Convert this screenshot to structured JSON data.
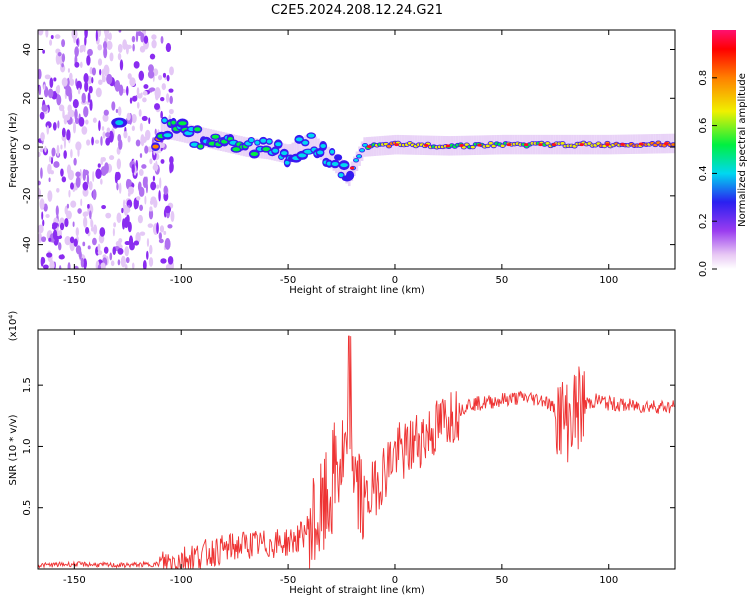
{
  "chart_data": [
    {
      "type": "heatmap",
      "title": "C2E5.2024.208.12.24.G21",
      "xlabel": "Height of straight line (km)",
      "ylabel": "Frequency (Hz)",
      "xlim": [
        -167,
        131
      ],
      "ylim": [
        -50,
        48
      ],
      "xticks": [
        -150,
        -100,
        -50,
        0,
        50,
        100
      ],
      "yticks": [
        -40,
        -20,
        0,
        20,
        40
      ],
      "colorbar": {
        "label": "Normalized spectral amplitude",
        "range": [
          0,
          1
        ],
        "ticks": [
          "0.0",
          "0.2",
          "0.4",
          "0.6",
          "0.8"
        ],
        "colors": [
          "#ffffff",
          "#e8c8f4",
          "#9a3cf0",
          "#2a20f0",
          "#00d8f0",
          "#00f040",
          "#f0f000",
          "#ff8000",
          "#ff0000",
          "#ff1070"
        ]
      },
      "trace": [
        {
          "x": -110,
          "f": 8,
          "amp": 0.45
        },
        {
          "x": -100,
          "f": 6,
          "amp": 0.5
        },
        {
          "x": -90,
          "f": 4,
          "amp": 0.45
        },
        {
          "x": -80,
          "f": 2,
          "amp": 0.5
        },
        {
          "x": -70,
          "f": 0,
          "amp": 0.5
        },
        {
          "x": -60,
          "f": -1,
          "amp": 0.45
        },
        {
          "x": -50,
          "f": -3,
          "amp": 0.45
        },
        {
          "x": -40,
          "f": 2,
          "amp": 0.45
        },
        {
          "x": -30,
          "f": -5,
          "amp": 0.45
        },
        {
          "x": -22,
          "f": -12,
          "amp": 0.4
        },
        {
          "x": -15,
          "f": 0,
          "amp": 0.5
        },
        {
          "x": 0,
          "f": 1,
          "amp": 0.7
        },
        {
          "x": 25,
          "f": 0.5,
          "amp": 0.6
        },
        {
          "x": 50,
          "f": 1,
          "amp": 0.6
        },
        {
          "x": 75,
          "f": 1,
          "amp": 0.65
        },
        {
          "x": 100,
          "f": 1,
          "amp": 0.7
        },
        {
          "x": 131,
          "f": 1.5,
          "amp": 0.8
        }
      ]
    },
    {
      "type": "line",
      "xlabel": "Height of straight line (km)",
      "ylabel": "SNR (10 * v/v)",
      "multiplier": "(x10⁴)",
      "xlim": [
        -167,
        131
      ],
      "ylim": [
        0,
        1.95
      ],
      "xticks": [
        -150,
        -100,
        -50,
        0,
        50,
        100
      ],
      "yticks": [
        0.5,
        1.0,
        1.5
      ],
      "ytick_labels": [
        "0.5",
        "1.0",
        "1.5"
      ],
      "color": "#ee3333",
      "x": [
        -167,
        -150,
        -130,
        -110,
        -100,
        -90,
        -80,
        -70,
        -60,
        -50,
        -45,
        -40,
        -35,
        -30,
        -28,
        -25,
        -22,
        -20,
        -18,
        -15,
        -10,
        -5,
        0,
        5,
        10,
        15,
        20,
        25,
        30,
        35,
        40,
        50,
        60,
        70,
        75,
        80,
        85,
        90,
        95,
        100,
        110,
        120,
        131
      ],
      "y": [
        0.03,
        0.04,
        0.03,
        0.04,
        0.08,
        0.12,
        0.16,
        0.2,
        0.2,
        0.22,
        0.25,
        0.35,
        0.4,
        0.6,
        0.8,
        0.85,
        0.9,
        0.8,
        0.7,
        0.5,
        0.65,
        0.8,
        0.95,
        0.95,
        1.05,
        1.1,
        1.15,
        1.25,
        1.3,
        1.35,
        1.35,
        1.38,
        1.4,
        1.38,
        1.3,
        1.2,
        1.3,
        1.35,
        1.38,
        1.35,
        1.33,
        1.33,
        1.32
      ]
    }
  ]
}
